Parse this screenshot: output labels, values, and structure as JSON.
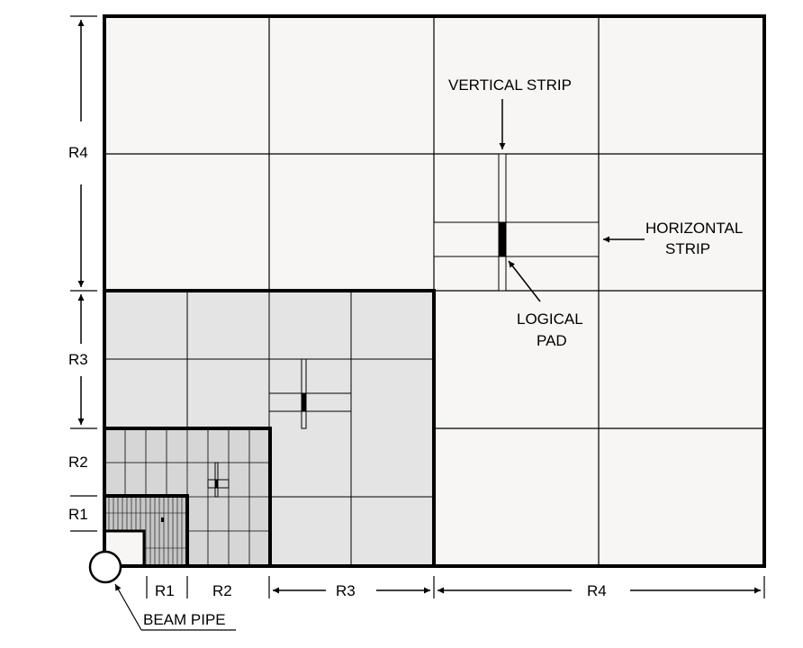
{
  "regions": {
    "r1": "R1",
    "r2": "R2",
    "r3": "R3",
    "r4": "R4"
  },
  "annotations": {
    "vertical_strip": "VERTICAL STRIP",
    "horizontal_strip_line1": "HORIZONTAL",
    "horizontal_strip_line2": "STRIP",
    "logical_pad_line1": "LOGICAL",
    "logical_pad_line2": "PAD",
    "beam_pipe": "BEAM PIPE"
  },
  "colors": {
    "r4_fill": "#f7f6f4",
    "r3_fill": "#e4e4e4",
    "r2_fill": "#d6d6d6",
    "r1_fill": "#c6c6c6",
    "line": "#000000"
  }
}
